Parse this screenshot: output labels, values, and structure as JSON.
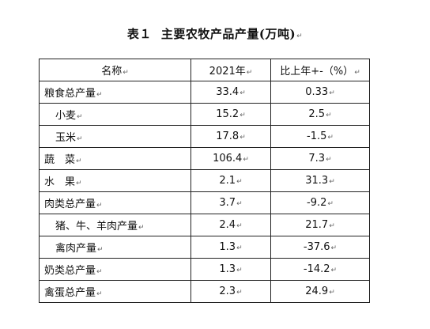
{
  "title": {
    "label": "表１",
    "text": "主要农牧产品产量(万吨)"
  },
  "table": {
    "headers": [
      "名称",
      "2021年",
      "比上年+-（%）"
    ],
    "rows": [
      {
        "name": "粮食总产量",
        "value": "33.4",
        "change": "0.33",
        "indent": false
      },
      {
        "name": "小麦",
        "value": "15.2",
        "change": "2.5",
        "indent": true
      },
      {
        "name": "玉米",
        "value": "17.8",
        "change": "-1.5",
        "indent": true
      },
      {
        "name": "蔬　菜",
        "value": "106.4",
        "change": "7.3",
        "indent": false
      },
      {
        "name": "水　果",
        "value": "2.1",
        "change": "31.3",
        "indent": false
      },
      {
        "name": "肉类总产量",
        "value": "3.7",
        "change": "-9.2",
        "indent": false
      },
      {
        "name": "猪、牛、羊肉产量",
        "value": "2.4",
        "change": "21.7",
        "indent": true
      },
      {
        "name": "禽肉产量",
        "value": "1.3",
        "change": "-37.6",
        "indent": true
      },
      {
        "name": "奶类总产量",
        "value": "1.3",
        "change": "-14.2",
        "indent": false
      },
      {
        "name": "禽蛋总产量",
        "value": "2.3",
        "change": "24.9",
        "indent": false
      }
    ]
  },
  "marks": {
    "paragraph_mark": "↵"
  }
}
